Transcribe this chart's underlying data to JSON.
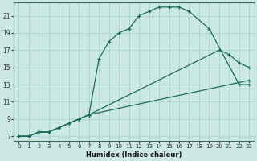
{
  "xlabel": "Humidex (Indice chaleur)",
  "bg_color": "#cce8e4",
  "line_color": "#1a6b5a",
  "grid_color": "#aad8d0",
  "xlim": [
    -0.5,
    23.5
  ],
  "ylim": [
    6.5,
    22.5
  ],
  "xticks": [
    0,
    1,
    2,
    3,
    4,
    5,
    6,
    7,
    8,
    9,
    10,
    11,
    12,
    13,
    14,
    15,
    16,
    17,
    18,
    19,
    20,
    21,
    22,
    23
  ],
  "yticks": [
    7,
    9,
    11,
    13,
    15,
    17,
    19,
    21
  ],
  "lines": [
    {
      "x": [
        0,
        1,
        2,
        3,
        4,
        5,
        6,
        7,
        8,
        9,
        10,
        11,
        12,
        13,
        14,
        15,
        16,
        17,
        19,
        22,
        23
      ],
      "y": [
        7,
        7,
        7.5,
        7.5,
        8,
        8.5,
        9,
        9.5,
        16,
        18,
        19,
        19.5,
        21,
        21.5,
        22,
        22,
        22,
        21.5,
        19.5,
        13,
        13
      ]
    },
    {
      "x": [
        0,
        1,
        2,
        3,
        4,
        5,
        6,
        7,
        20,
        21,
        22,
        23
      ],
      "y": [
        7,
        7,
        7.5,
        7.5,
        8,
        8.5,
        9,
        9.5,
        17,
        16.5,
        15.5,
        15
      ]
    },
    {
      "x": [
        0,
        1,
        2,
        3,
        4,
        5,
        6,
        7,
        23
      ],
      "y": [
        7,
        7,
        7.5,
        7.5,
        8,
        8.5,
        9,
        9.5,
        13.5
      ]
    }
  ]
}
